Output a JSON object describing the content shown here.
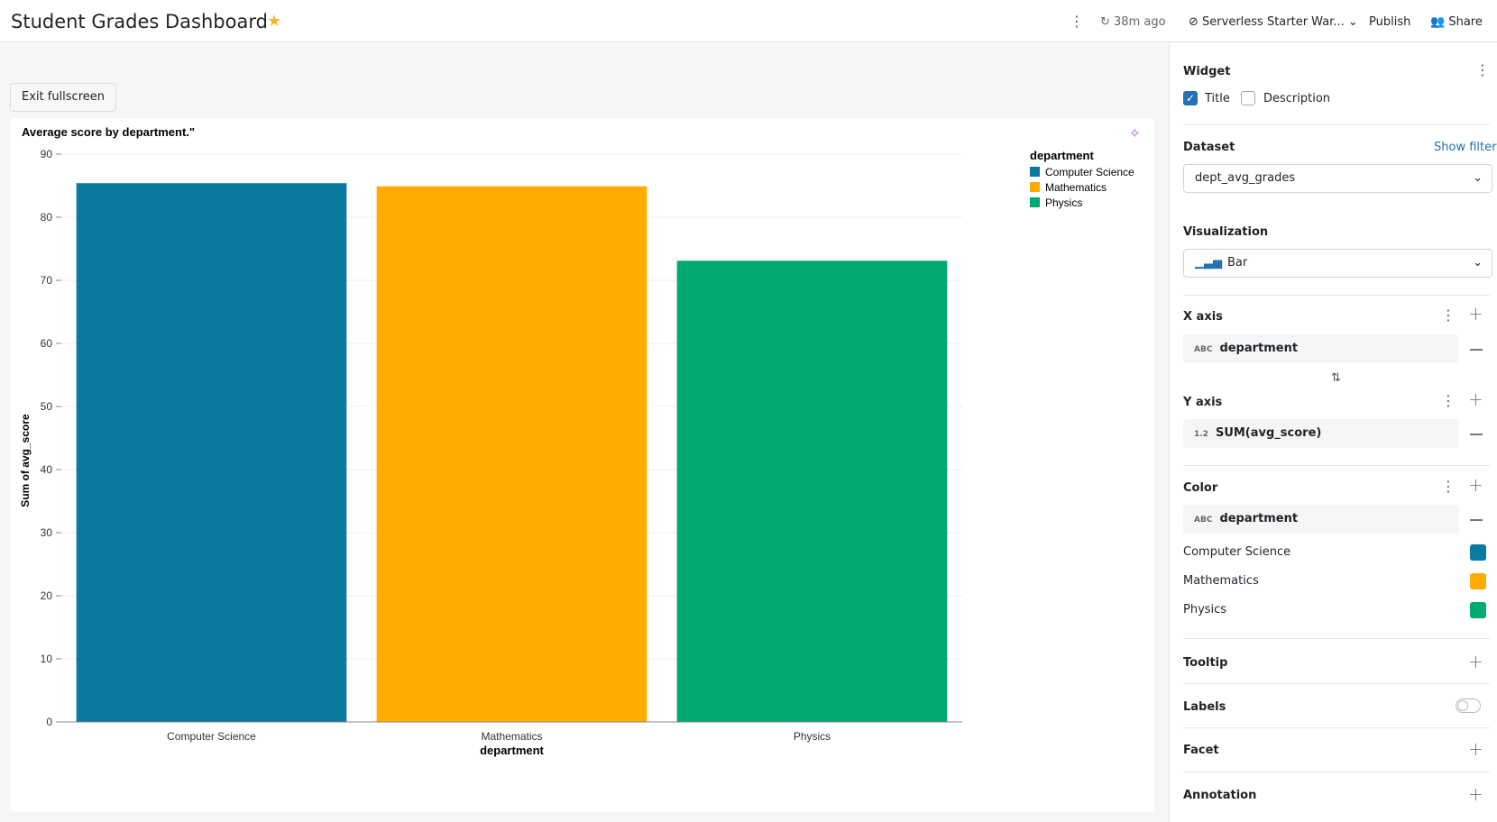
{
  "header": {
    "title": "Student Grades Dashboard",
    "refresh": "38m ago",
    "warehouse": "Serverless Starter War...",
    "publish": "Publish",
    "share": "Share"
  },
  "exit_button": "Exit fullscreen",
  "panel": {
    "widget": {
      "heading": "Widget",
      "title_option": "Title",
      "description_option": "Description"
    },
    "dataset": {
      "heading": "Dataset",
      "show_filters": "Show filters",
      "value": "dept_avg_grades"
    },
    "visualization": {
      "heading": "Visualization",
      "value": "Bar"
    },
    "x_axis": {
      "heading": "X axis",
      "field_type": "ABC",
      "field": "department"
    },
    "y_axis": {
      "heading": "Y axis",
      "field_type": "1.2",
      "field": "SUM(avg_score)"
    },
    "color": {
      "heading": "Color",
      "field_type": "ABC",
      "field": "department"
    },
    "tooltip": "Tooltip",
    "labels": "Labels",
    "facet": "Facet",
    "annotation": "Annotation"
  },
  "chart_data": {
    "type": "bar",
    "title": "Average score by department.\"",
    "categories": [
      "Computer Science",
      "Mathematics",
      "Physics"
    ],
    "values": [
      85.4,
      84.9,
      73.1
    ],
    "colors": [
      "#0b7aa0",
      "#ffab00",
      "#00a972"
    ],
    "x_label": "department",
    "y_label": "Sum of avg_score",
    "legend_title": "department",
    "ylim": [
      0,
      90
    ],
    "yticks": [
      0,
      10,
      20,
      30,
      40,
      50,
      60,
      70,
      80,
      90
    ],
    "grid": true
  }
}
